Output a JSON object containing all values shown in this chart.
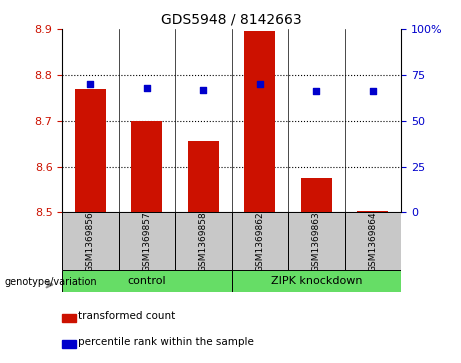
{
  "title": "GDS5948 / 8142663",
  "samples": [
    "GSM1369856",
    "GSM1369857",
    "GSM1369858",
    "GSM1369862",
    "GSM1369863",
    "GSM1369864"
  ],
  "bar_values": [
    8.77,
    8.7,
    8.655,
    8.895,
    8.575,
    8.503
  ],
  "bar_bottom": 8.5,
  "percentile_values": [
    70,
    68,
    67,
    70,
    66,
    66
  ],
  "percentile_scale_max": 100,
  "ylim": [
    8.5,
    8.9
  ],
  "y_ticks": [
    8.5,
    8.6,
    8.7,
    8.8,
    8.9
  ],
  "right_yticks": [
    0,
    25,
    50,
    75,
    100
  ],
  "right_ytick_labels": [
    "0",
    "25",
    "50",
    "75",
    "100%"
  ],
  "bar_color": "#cc1100",
  "dot_color": "#0000cc",
  "genotype_label": "genotype/variation",
  "group_labels": [
    "control",
    "ZIPK knockdown"
  ],
  "legend_bar_label": "transformed count",
  "legend_dot_label": "percentile rank within the sample",
  "xlabel_gray_bg": "#c8c8c8",
  "group_bg": "#66dd66",
  "plot_bg": "#ffffff",
  "grid_color": "#000000"
}
